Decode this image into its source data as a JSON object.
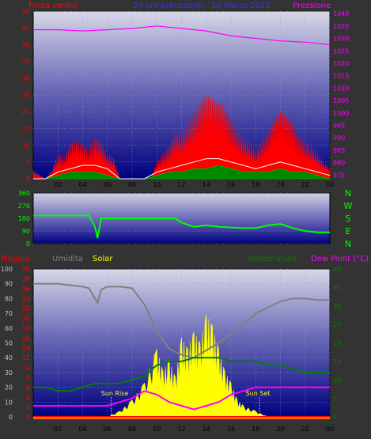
{
  "colors": {
    "bg": "#333333",
    "red": "#ff0000",
    "blue_title": "#3333ff",
    "magenta": "#ff00ff",
    "white": "#ffffff",
    "green": "#00cc00",
    "bright_green": "#00ff00",
    "grey": "#808080",
    "yellow": "#ffff00",
    "label_grey": "#c0c0c0",
    "temp_green": "#008000",
    "dew_magenta": "#ff00ff"
  },
  "chart_data": [
    {
      "type": "line",
      "title": "24 ore precedenti - 10 Marzo 2022",
      "left_axis_label": "Forza vento(",
      "right_axis_label": "Pressione",
      "x_ticks": [
        "02",
        "04",
        "06",
        "08",
        "10",
        "12",
        "14",
        "16",
        "18",
        "20",
        "22",
        "00"
      ],
      "y_left_ticks": [
        "0",
        "5",
        "10",
        "15",
        "20",
        "25",
        "30",
        "35",
        "40",
        "45",
        "50"
      ],
      "y_left_range": [
        0,
        50
      ],
      "y_right_ticks": [
        "975",
        "980",
        "985",
        "990",
        "995",
        "1000",
        "1005",
        "1010",
        "1015",
        "1020",
        "1025",
        "1030",
        "1035",
        "1040"
      ],
      "y_right_range": [
        973.5,
        1041
      ],
      "series": [
        {
          "role": "gust (red)",
          "x": [
            0,
            0.5,
            1,
            1.5,
            2,
            2.5,
            3,
            3.5,
            4,
            4.5,
            5,
            5.5,
            6,
            6.5,
            7,
            7.5,
            8,
            8.5,
            9,
            9.5,
            10,
            10.5,
            11,
            11.5,
            12,
            12.5,
            13,
            13.5,
            14,
            14.5,
            15,
            15.5,
            16,
            16.5,
            17,
            17.5,
            18,
            18.5,
            19,
            19.5,
            20,
            20.5,
            21,
            21.5,
            22,
            22.5,
            23,
            23.5,
            24
          ],
          "values": [
            2,
            1,
            0,
            2,
            6,
            5,
            8,
            9,
            8,
            7,
            10,
            9,
            6,
            5,
            0,
            0,
            0,
            0,
            0,
            0,
            4,
            6,
            8,
            12,
            11,
            14,
            16,
            18,
            20,
            19,
            18,
            17,
            14,
            12,
            10,
            9,
            7,
            9,
            11,
            14,
            16,
            15,
            13,
            10,
            9,
            8,
            6,
            4,
            3
          ]
        },
        {
          "role": "mean wind (white)",
          "x": [
            0,
            1,
            2,
            3,
            4,
            5,
            6,
            7,
            8,
            9,
            10,
            11,
            12,
            13,
            14,
            15,
            16,
            17,
            18,
            19,
            20,
            21,
            22,
            23,
            24
          ],
          "values": [
            0,
            0,
            2,
            3,
            4,
            4,
            3,
            0,
            0,
            0,
            2,
            3,
            4,
            5,
            6,
            6,
            5,
            4,
            3,
            4,
            5,
            4,
            3,
            2,
            1
          ]
        },
        {
          "role": "wind (green)",
          "x": [
            0,
            1,
            2,
            3,
            4,
            5,
            6,
            7,
            8,
            9,
            10,
            11,
            12,
            13,
            14,
            15,
            16,
            17,
            18,
            19,
            20,
            21,
            22,
            23,
            24
          ],
          "values": [
            0,
            0,
            1,
            2,
            2,
            2,
            1,
            0,
            0,
            0,
            1,
            2,
            2,
            3,
            3,
            4,
            3,
            2,
            2,
            2,
            3,
            2,
            2,
            1,
            0
          ]
        },
        {
          "role": "pressure (magenta)",
          "axis": "right",
          "x": [
            0,
            2,
            4,
            6,
            8,
            10,
            12,
            14,
            16,
            17,
            18,
            20,
            22,
            24
          ],
          "values": [
            1033.5,
            1033.5,
            1033,
            1033.5,
            1034,
            1035,
            1034,
            1033,
            1031,
            1030.5,
            1030,
            1029,
            1028.5,
            1027.5
          ]
        }
      ]
    },
    {
      "type": "line",
      "title": "",
      "y_ticks": [
        "0",
        "90",
        "180",
        "270",
        "360"
      ],
      "y_range": [
        0,
        360
      ],
      "direction_labels": [
        "N",
        "W",
        "S",
        "E",
        "N"
      ],
      "series": [
        {
          "role": "wind direction (green)",
          "x": [
            0,
            4.5,
            5,
            5.2,
            5.5,
            6,
            7,
            8,
            9,
            10,
            11,
            11.5,
            12,
            13,
            14,
            15,
            16,
            17,
            18,
            19,
            20,
            21,
            22,
            23,
            24
          ],
          "values": [
            200,
            200,
            120,
            40,
            180,
            180,
            180,
            180,
            180,
            180,
            180,
            180,
            150,
            120,
            130,
            120,
            115,
            110,
            110,
            130,
            140,
            110,
            90,
            80,
            80
          ]
        }
      ]
    },
    {
      "type": "line",
      "labels_top": [
        "Pioggia",
        "Umidita",
        "Solar",
        "Temperatura",
        "Dew Point (°C)"
      ],
      "y_left_ticks": [
        "0",
        "10",
        "20",
        "30",
        "40",
        "50",
        "60",
        "70",
        "80",
        "90",
        "100"
      ],
      "y_left_range": [
        0,
        100
      ],
      "y_mid_ticks": [
        "0",
        "2",
        "4",
        "6",
        "8",
        "10",
        "12",
        "14",
        "16",
        "18",
        "20",
        "22",
        "24",
        "26",
        "28",
        "30"
      ],
      "y_mid_range": [
        0,
        30
      ],
      "y_right_ticks": [
        "0",
        "5",
        "10",
        "15",
        "20",
        "25",
        "30",
        "35",
        "40"
      ],
      "y_right_range": [
        0,
        40
      ],
      "annotations": [
        {
          "text": "Sun Rise",
          "x": 6.3
        },
        {
          "text": "Sun Set",
          "x": 18.3
        }
      ],
      "series": [
        {
          "role": "humidity (grey)",
          "axis": "left",
          "x": [
            0,
            1,
            2,
            3,
            4,
            4.5,
            5,
            5.2,
            5.5,
            6,
            7,
            8,
            9,
            10,
            11,
            12,
            13,
            14,
            15,
            16,
            17,
            18,
            19,
            20,
            21,
            22,
            23,
            24
          ],
          "values": [
            90,
            90,
            90,
            89,
            88,
            87,
            80,
            77,
            86,
            88,
            88,
            87,
            76,
            58,
            46,
            42,
            40,
            45,
            50,
            56,
            62,
            70,
            74,
            78,
            80,
            80,
            79,
            79
          ]
        },
        {
          "role": "temperature (dark green)",
          "axis": "right",
          "x": [
            0,
            1,
            2,
            3,
            4,
            5,
            6,
            7,
            8,
            9,
            10,
            11,
            12,
            13,
            14,
            15,
            16,
            17,
            18,
            19,
            20,
            21,
            22,
            23,
            24
          ],
          "values": [
            8,
            8,
            7,
            7,
            8,
            9,
            9,
            9,
            10,
            11,
            14,
            15,
            15,
            16,
            16,
            16,
            15,
            15,
            15,
            14,
            14,
            13,
            12,
            12,
            12
          ]
        },
        {
          "role": "dew point (magenta)",
          "axis": "right",
          "x": [
            0,
            1,
            2,
            3,
            4,
            5,
            6,
            7,
            8,
            9,
            10,
            11,
            12,
            13,
            14,
            15,
            16,
            17,
            18,
            19,
            20,
            21,
            22,
            23,
            24
          ],
          "values": [
            3,
            3,
            3,
            3,
            3,
            3,
            3,
            4,
            5,
            7,
            6,
            4,
            3,
            2,
            3,
            4,
            6,
            7,
            8,
            8,
            8,
            8,
            8,
            8,
            8
          ]
        },
        {
          "role": "solar (yellow)",
          "axis": "mid",
          "x": [
            6,
            7,
            8,
            9,
            10,
            10.5,
            11,
            11.5,
            12,
            12.5,
            13,
            13.5,
            14,
            14.5,
            15,
            15.5,
            16,
            16.5,
            17,
            18,
            19
          ],
          "values": [
            0,
            1,
            3,
            6,
            12,
            8,
            10,
            7,
            14,
            12,
            15,
            13,
            18,
            16,
            12,
            8,
            6,
            3,
            2,
            1,
            0
          ]
        },
        {
          "role": "rain (red)",
          "axis": "mid",
          "x": [
            0,
            24
          ],
          "values": [
            0,
            0
          ]
        }
      ]
    }
  ]
}
